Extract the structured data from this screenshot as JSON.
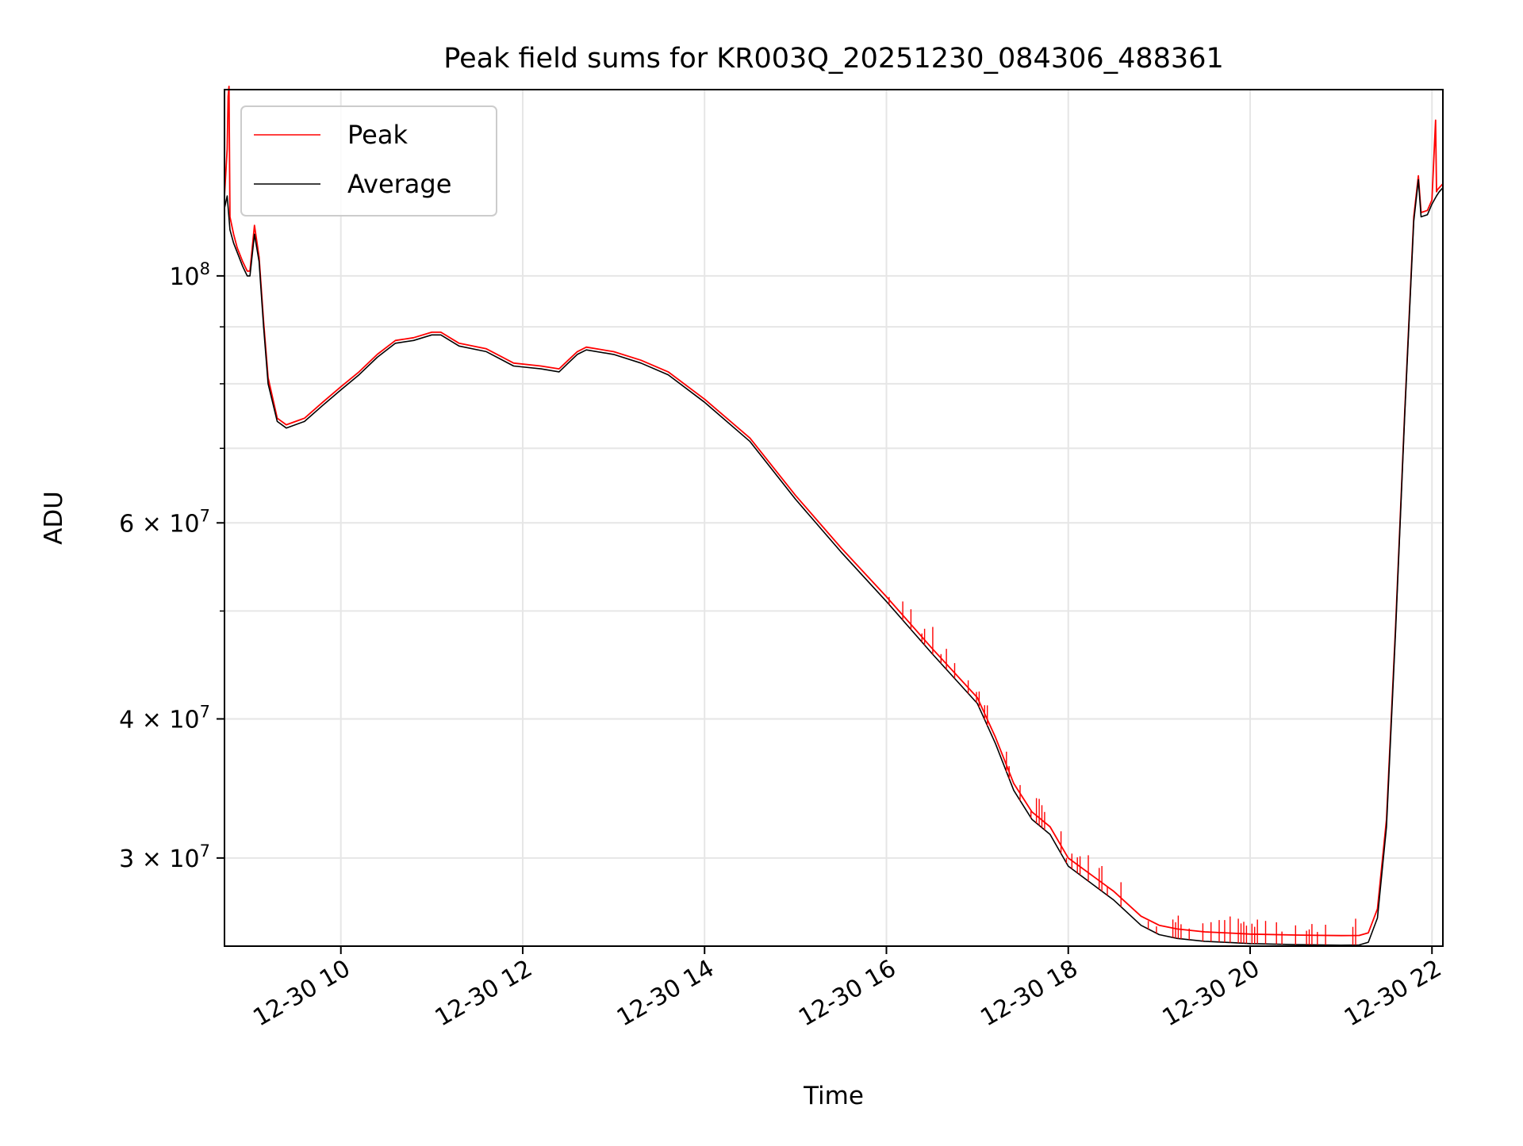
{
  "chart_data": {
    "type": "line",
    "title": "Peak field sums for KR003Q_20251230_084306_488361",
    "xlabel": "Time",
    "ylabel": "ADU",
    "x_unit": "hour",
    "xlim": [
      8.72,
      22.12
    ],
    "ylim": [
      25000000,
      147000000
    ],
    "yscale": "log",
    "grid": true,
    "x_ticks": [
      {
        "value": 10,
        "label": "12-30 10"
      },
      {
        "value": 12,
        "label": "12-30 12"
      },
      {
        "value": 14,
        "label": "12-30 14"
      },
      {
        "value": 16,
        "label": "12-30 16"
      },
      {
        "value": 18,
        "label": "12-30 18"
      },
      {
        "value": 20,
        "label": "12-30 20"
      },
      {
        "value": 22,
        "label": "12-30 22"
      }
    ],
    "y_major_ticks": [
      {
        "value": 100000000,
        "base": "10",
        "exp": "8",
        "mant": ""
      },
      {
        "value": 60000000,
        "base": "10",
        "exp": "7",
        "mant": "6 × "
      },
      {
        "value": 40000000,
        "base": "10",
        "exp": "7",
        "mant": "4 × "
      },
      {
        "value": 30000000,
        "base": "10",
        "exp": "7",
        "mant": "3 × "
      }
    ],
    "y_minor_ticks": [
      90000000,
      80000000,
      70000000,
      50000000
    ],
    "legend": {
      "position": "upper-left",
      "entries": [
        "Peak",
        "Average"
      ]
    },
    "series": [
      {
        "name": "Average",
        "color": "#000000",
        "x": [
          8.72,
          8.75,
          8.78,
          8.82,
          8.86,
          8.92,
          8.97,
          9.0,
          9.05,
          9.1,
          9.15,
          9.2,
          9.3,
          9.4,
          9.6,
          9.8,
          10.0,
          10.2,
          10.4,
          10.6,
          10.8,
          11.0,
          11.1,
          11.3,
          11.6,
          11.9,
          12.2,
          12.4,
          12.5,
          12.6,
          12.7,
          13.0,
          13.3,
          13.6,
          14.0,
          14.5,
          15.0,
          15.5,
          16.0,
          16.5,
          17.0,
          17.2,
          17.4,
          17.6,
          17.8,
          18.0,
          18.5,
          18.8,
          19.0,
          19.2,
          19.5,
          19.8,
          20.0,
          20.5,
          21.0,
          21.2,
          21.3,
          21.4,
          21.5,
          21.6,
          21.7,
          21.8,
          21.85,
          21.88,
          21.95,
          22.0,
          22.05,
          22.08,
          22.12
        ],
        "y": [
          115000000,
          118000000,
          110000000,
          107000000,
          105000000,
          102000000,
          100000000,
          100000000,
          109000000,
          103000000,
          90000000,
          80000000,
          74000000,
          73000000,
          74000000,
          76500000,
          79000000,
          81500000,
          84500000,
          87000000,
          87500000,
          88500000,
          88500000,
          86500000,
          85500000,
          83000000,
          82500000,
          82000000,
          83500000,
          85000000,
          85800000,
          85000000,
          83500000,
          81500000,
          77000000,
          71000000,
          63000000,
          56500000,
          51000000,
          45800000,
          41300000,
          38000000,
          34500000,
          32500000,
          31500000,
          29500000,
          27500000,
          26100000,
          25600000,
          25400000,
          25250000,
          25180000,
          25130000,
          25080000,
          25050000,
          25060000,
          25200000,
          26500000,
          32000000,
          48000000,
          75000000,
          112000000,
          122000000,
          113000000,
          113500000,
          116000000,
          118000000,
          119000000,
          120000000
        ]
      },
      {
        "name": "Peak",
        "color": "#ff0000",
        "x": [
          8.72,
          8.75,
          8.76,
          8.77,
          8.78,
          8.82,
          8.86,
          8.92,
          8.97,
          9.0,
          9.05,
          9.1,
          9.15,
          9.2,
          9.3,
          9.4,
          9.6,
          9.8,
          10.0,
          10.2,
          10.4,
          10.6,
          10.8,
          11.0,
          11.1,
          11.3,
          11.6,
          11.9,
          12.2,
          12.4,
          12.5,
          12.6,
          12.7,
          13.0,
          13.3,
          13.6,
          14.0,
          14.5,
          15.0,
          15.5,
          16.0,
          16.5,
          17.0,
          17.2,
          17.4,
          17.6,
          17.8,
          18.0,
          18.5,
          18.8,
          19.0,
          19.2,
          19.5,
          19.8,
          20.0,
          20.5,
          21.0,
          21.2,
          21.3,
          21.4,
          21.5,
          21.6,
          21.7,
          21.8,
          21.85,
          21.88,
          21.95,
          22.0,
          22.04,
          22.05,
          22.06,
          22.08,
          22.12
        ],
        "y": [
          118000000,
          130000000,
          145000000,
          148000000,
          113000000,
          109000000,
          106000000,
          103000000,
          101000000,
          101000000,
          111000000,
          104000000,
          91000000,
          81000000,
          74500000,
          73500000,
          74500000,
          77000000,
          79500000,
          82000000,
          85000000,
          87500000,
          88000000,
          89000000,
          89000000,
          87000000,
          86000000,
          83500000,
          83000000,
          82500000,
          84000000,
          85500000,
          86300000,
          85500000,
          84000000,
          82000000,
          77500000,
          71500000,
          63500000,
          57000000,
          51500000,
          46300000,
          41800000,
          38500000,
          35000000,
          33000000,
          32000000,
          30000000,
          28000000,
          26600000,
          26100000,
          25900000,
          25750000,
          25680000,
          25630000,
          25580000,
          25550000,
          25560000,
          25700000,
          27000000,
          32500000,
          48500000,
          75500000,
          113000000,
          123000000,
          114000000,
          114500000,
          117000000,
          138000000,
          119000000,
          119500000,
          120000000,
          121000000
        ]
      }
    ]
  }
}
